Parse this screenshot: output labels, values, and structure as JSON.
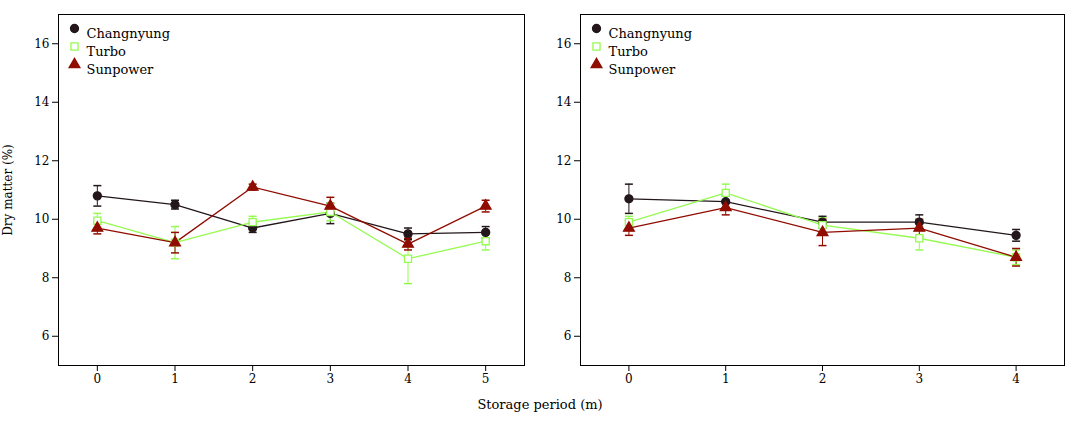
{
  "chart_data": [
    {
      "type": "line",
      "xlabel": "Storage period (m)",
      "ylabel": "Dry matter (%)",
      "x": [
        0,
        1,
        2,
        3,
        4,
        5
      ],
      "xlim": [
        -0.5,
        5.5
      ],
      "xticks": [
        0,
        1,
        2,
        3,
        4,
        5
      ],
      "ylim": [
        5,
        17
      ],
      "yticks": [
        6,
        8,
        10,
        12,
        14,
        16
      ],
      "legend": "upper left",
      "series": [
        {
          "name": "Changnyung",
          "marker": "circle",
          "values": [
            10.8,
            10.5,
            9.7,
            10.2,
            9.5,
            9.55
          ],
          "errors": [
            0.35,
            0.15,
            0.15,
            0.35,
            0.2,
            0.2
          ]
        },
        {
          "name": "Turbo",
          "marker": "square-open",
          "values": [
            9.95,
            9.2,
            9.9,
            10.25,
            8.65,
            9.25
          ],
          "errors": [
            0.25,
            0.55,
            0.2,
            0.3,
            0.85,
            0.3
          ]
        },
        {
          "name": "Sunpower",
          "marker": "triangle",
          "values": [
            9.7,
            9.2,
            11.1,
            10.45,
            9.15,
            10.45
          ],
          "errors": [
            0.2,
            0.35,
            0.1,
            0.3,
            0.2,
            0.2
          ]
        }
      ]
    },
    {
      "type": "line",
      "x": [
        0,
        1,
        2,
        3,
        4
      ],
      "xlim": [
        -0.5,
        4.5
      ],
      "xticks": [
        0,
        1,
        2,
        3,
        4
      ],
      "ylim": [
        5,
        17
      ],
      "yticks": [
        6,
        8,
        10,
        12,
        14,
        16
      ],
      "legend": "upper left",
      "series": [
        {
          "name": "Changnyung",
          "marker": "circle",
          "values": [
            10.7,
            10.6,
            9.9,
            9.9,
            9.45
          ],
          "errors": [
            0.5,
            0.2,
            0.2,
            0.25,
            0.2
          ]
        },
        {
          "name": "Turbo",
          "marker": "square-open",
          "values": [
            9.9,
            10.9,
            9.8,
            9.35,
            8.7
          ],
          "errors": [
            0.2,
            0.3,
            0.25,
            0.4,
            0.25
          ]
        },
        {
          "name": "Sunpower",
          "marker": "triangle",
          "values": [
            9.7,
            10.4,
            9.55,
            9.7,
            8.7
          ],
          "errors": [
            0.25,
            0.25,
            0.45,
            0.3,
            0.3
          ]
        }
      ]
    }
  ]
}
